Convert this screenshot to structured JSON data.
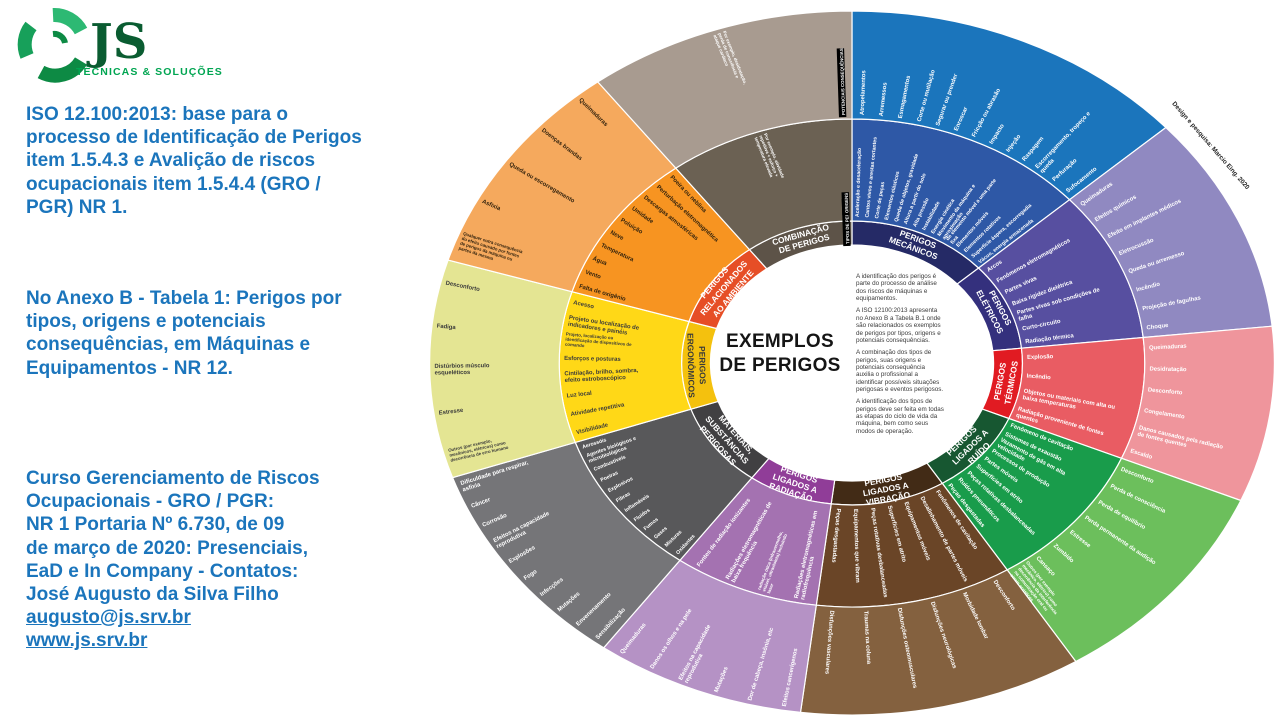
{
  "logo": {
    "brand": "JS",
    "tagline": "TÉCNICAS & SOLUÇÕES",
    "swirl_colors": [
      "#0D8A44",
      "#2DB973",
      "#17A05A"
    ],
    "brand_color": "#0A5C31",
    "tagline_color": "#00A551"
  },
  "left_panel": {
    "text_color": "#1B75BC",
    "block1": "ISO 12.100:2013: base para o processo de Identificação de Perigos item 1.5.4.3 e Avalição de riscos ocupacionais item 1.5.4.4 (GRO / PGR) NR 1.",
    "block2": "No Anexo B - Tabela 1: Perigos por tipos, origens e potenciais consequências, em Máquinas e Equipamentos - NR 12.",
    "contact": {
      "lines": [
        "Curso Gerenciamento de Riscos",
        "Ocupacionais - GRO / PGR:",
        "NR 1 Portaria Nº 6.730, de 09",
        "de março de 2020: Presenciais,",
        "EaD e In Company - Contatos:",
        "José Augusto da Silva Filho"
      ],
      "email": "augusto@js.srv.br",
      "website": "www.js.srv.br"
    }
  },
  "wheel": {
    "center": {
      "title_lines": [
        "EXEMPLOS",
        "DE PERIGOS"
      ],
      "paragraphs": [
        "A identificação dos perigos é parte do processo de análise dos riscos de máquinas e equipamentos.",
        "A ISO 12100:2013 apresenta no Anexo B a Tabela B.1 onde são relacionados os exemplos de perigos por tipos, origens e potenciais consequências.",
        "A combinação dos tipos de perigos, suas origens e potenciais consequência auxilia o profissional a identificar possíveis situações perigosas e eventos perigosos.",
        "A identificação dos tipos de perigos deve ser feita em todas as etapas do ciclo de vida da máquina, bem como seus modos de operação."
      ]
    },
    "ring_tags": [
      "TIPOS DE PERIGOS",
      "ORIGENS",
      "POTENCIAIS CONSEQUÊNCIAS"
    ],
    "credit": "Design e pesquisa: Marcio Eing. 2020",
    "sectors": [
      {
        "id": "perigos-mecanicos",
        "span": 48,
        "label_lines": [
          "PERIGOS",
          "MECÂNICOS"
        ],
        "color_inner": "#252A66",
        "color_mid": "#2E58A6",
        "color_out": "#1B75BC",
        "label_color": "#FFFFFF",
        "item_color_mid": "#FFFFFF",
        "item_color_out": "#FFFFFF",
        "origens": [
          "Aceleração e desaceleração",
          "Cantos vivos e arestas cortantes",
          "Corte de peças",
          "Elementos elásticos",
          "Queda de objetos, gravidade",
          "Altura a partir do solo",
          "Alta pressão",
          "Instabilidade",
          "Energia cinética",
          "Movimento da máquina e aproximação",
          "de elemento móvel a uma parte fixa",
          "Elementos móveis",
          "Elementos rotativos",
          "Superfície áspera, escorregadia",
          "Vácuo, energia armazenada"
        ],
        "consequencias": [
          "Atropelamentos",
          "Arremessos",
          "Esmagamentos",
          "Corte ou mutilação",
          "Segurar ou prender",
          "Enroscar",
          "Fricção ou abrasão",
          "Impacto",
          "Injeção",
          "Raspagem",
          "Escorregamento, tropeço e queda",
          "Perfuração",
          "Sufocamento"
        ]
      },
      {
        "id": "perigos-eletricos",
        "span": 36,
        "label_lines": [
          "PERIGOS",
          "ELÉTRICOS"
        ],
        "color_inner": "#34307D",
        "color_mid": "#574FA0",
        "color_out": "#9089C1",
        "label_color": "#FFFFFF",
        "item_color_mid": "#FFFFFF",
        "item_color_out": "#FFFFFF",
        "origens": [
          "Arcos",
          "Fenômenos eletromagnéticos",
          "Partes vivas",
          "Baixa rigidez dielétrica",
          "Partes vivas sob condições de falha",
          "Curto-circuito",
          "Radiação térmica"
        ],
        "consequencias": [
          "Queimaduras",
          "Efeitos químicos",
          "Efeito em implantes médicos",
          "Eletrocussão",
          "Queda ou arremesso",
          "Incêndio",
          "Projeção de fagulhas",
          "Choque"
        ]
      },
      {
        "id": "perigos-termicos",
        "span": 29,
        "label_lines": [
          "PERIGOS",
          "TÉRMICOS"
        ],
        "color_inner": "#E11B22",
        "color_mid": "#E95C63",
        "color_out": "#EF959C",
        "label_color": "#FFFFFF",
        "item_color_mid": "#FFFFFF",
        "item_color_out": "#FFFFFF",
        "origens": [
          "Explosão",
          "Incêndio",
          "Objetos ou materiais com alta ou baixa temperaturas",
          "Radiação proveniente de fontes quentes"
        ],
        "consequencias": [
          "Queimaduras",
          "Desidratação",
          "Desconforto",
          "Congelamento",
          "Danos causados pela radiação de fontes quentes",
          "Escaldo"
        ]
      },
      {
        "id": "perigos-ligados-a-ruido",
        "span": 35,
        "label_lines": [
          "PERIGOS",
          "LIGADOS A",
          "RUÍDO"
        ],
        "color_inner": "#175731",
        "color_mid": "#199C4B",
        "color_out": "#6CBF5C",
        "label_color": "#FFFFFF",
        "item_color_mid": "#FFFFFF",
        "item_color_out": "#FFFFFF",
        "origens": [
          "Fenômeno de cavitação",
          "Sistemas de exaustão",
          "Vazamento de gás em alta velocidade",
          "Processos de produção",
          "Partes móveis",
          "Superfícies em atrito",
          "Peças rotativas desbalanceadas",
          "Ruídos pneumáticos",
          "Peças desgastadas"
        ],
        "consequencias": [
          "Desconforto",
          "Perda de consciência",
          "Perda de equilíbrio",
          "Perda permanente da audição",
          "Estresse",
          "Zumbido",
          "Cansaço",
          "Outros (por exemplo mecânico, elétrico) como decorrência da interferência na comunicação oral ou sinais acústicos"
        ]
      },
      {
        "id": "perigos-ligados-a-vibracao",
        "span": 39,
        "label_lines": [
          "PERIGOS",
          "LIGADOS A",
          "VIBRAÇÃO"
        ],
        "color_inner": "#422B16",
        "color_mid": "#6A4527",
        "color_out": "#84613F",
        "label_color": "#FFFFFF",
        "item_color_mid": "#FFFFFF",
        "item_color_out": "#FFFFFF",
        "origens": [
          "Fenômenos de cavitação",
          "Desalinhamento de partes móveis",
          "Equipamentos móveis",
          "Superfícies em atrito",
          "Peças rotativas desbalanceadas",
          "Equipamentos que vibram",
          "Peças desgastadas"
        ],
        "consequencias": [
          "Desconforto",
          "Morbidade lombar",
          "Disfunções neurológicas",
          "Disfunções osteomusculares",
          "Traumas na coluna",
          "Disfunções vasculares"
        ]
      },
      {
        "id": "perigos-ligados-a-radiacao",
        "span": 29,
        "label_lines": [
          "PERIGOS",
          "LIGADOS A",
          "RADIAÇÃO"
        ],
        "color_inner": "#903D98",
        "color_mid": "#A472B1",
        "color_out": "#B592C5",
        "label_color": "#FFFFFF",
        "item_color_mid": "#FFFFFF",
        "item_color_out": "#FFFFFF",
        "origens": [
          "Fontes de radiação ionizantes",
          "Radiações eletromagnéticas de baixa frequência",
          "radiação ótica (infravermelho, visível, ultravioleta) incluindo laser",
          "Radiações eletromagnéticas em radiofrequência"
        ],
        "consequencias": [
          "Queimaduras",
          "Danos os olhos e na pele",
          "Efeitos na capacidade reprodutiva",
          "Mutações",
          "Dor de cabeça, insônia, etc",
          "Efeitos cancerígenos"
        ]
      },
      {
        "id": "materiais-substancias-perigosas",
        "span": 35,
        "label_lines": [
          "MATERIAIS,",
          "SUBSTÂNCIAS",
          "PERIGOSAS"
        ],
        "color_inner": "#414042",
        "color_mid": "#58585A",
        "color_out": "#757578",
        "label_color": "#FFFFFF",
        "item_color_mid": "#FFFFFF",
        "item_color_out": "#FFFFFF",
        "origens": [
          "Aerossóis",
          "Agentes biológicos e microbiológicos",
          "Combustíveis",
          "Poeiras",
          "Explosivos",
          "Fibras",
          "Inflamáveis",
          "Fluidos",
          "Fumos",
          "Gases",
          "Misturas",
          "Oxidantes"
        ],
        "consequencias": [
          "Dificuldade para respirar, asfixia",
          "Câncer",
          "Corrosão",
          "Efeitos na capacidade reprodutiva",
          "Explosões",
          "Fogo",
          "Infecções",
          "Mutações",
          "Envenenamento",
          "Sensibilização"
        ]
      },
      {
        "id": "perigos-ergonomicos",
        "span": 36,
        "label_lines": [
          "PERIGOS",
          "ERGONÔMICOS"
        ],
        "color_inner": "#F4C10E",
        "color_mid": "#FFD817",
        "color_out": "#E4E593",
        "label_color": "#3A3A3A",
        "item_color_mid": "#3A3A3A",
        "item_color_out": "#3A3A3A",
        "origens": [
          "Acesso",
          "Projeto ou localização de indicadores e painéis",
          "Projeto, localização ou identificação de dispositivos de comando",
          "Esforços e posturas",
          "Cintilação, brilho, sombra, efeito estroboscópico",
          "Luz local",
          "Atividade repetitiva",
          "Visibilidade"
        ],
        "consequencias": [
          "Desconforto",
          "Fadiga",
          "Distúrbios músculo esqueléticos",
          "Estresse",
          "Outros (por exemplo, mecânicos, elétricos) como decorrência de erro humano"
        ]
      },
      {
        "id": "perigos-relacionados-ao-ambiente",
        "span": 36,
        "label_lines": [
          "PERIGOS",
          "RELACIONADOS",
          "AO AMBIENTE"
        ],
        "color_inner": "#E64E26",
        "color_mid": "#F79421",
        "color_out": "#F5A95D",
        "label_color": "#FFFFFF",
        "item_color_mid": "#33230E",
        "item_color_out": "#33230E",
        "origens": [
          "Poeira ou neblina",
          "Perturbação eletromagnética",
          "Descargas atmosféricas",
          "Umidade",
          "Poluição",
          "Neve",
          "Temperatura",
          "Água",
          "Vento",
          "Falta de oxigênio"
        ],
        "consequencias": [
          "Queimaduras",
          "Doenças brandas",
          "Queda ou escorregamento",
          "Asfixia",
          "Qualquer outra consequência do efeito causado por fontes de perigos da máquina ou partes da mesma"
        ]
      },
      {
        "id": "combinacao-de-perigos",
        "span": 37,
        "label_lines": [
          "COMBINAÇÃO",
          "DE PERIGOS"
        ],
        "color_inner": "#5D5348",
        "color_mid": "#6B6153",
        "color_out": "#A89B90",
        "label_color": "#FFFFFF",
        "item_color_mid": "#FFFFFF",
        "item_color_out": "#FFFFFF",
        "origens": [
          "Por exemplo, atividade repetitiva + esforço + temperatura elevada"
        ],
        "consequencias": [
          "Por exemplo, desidratação, perda de consciência e ataque cardíaco"
        ]
      }
    ]
  }
}
